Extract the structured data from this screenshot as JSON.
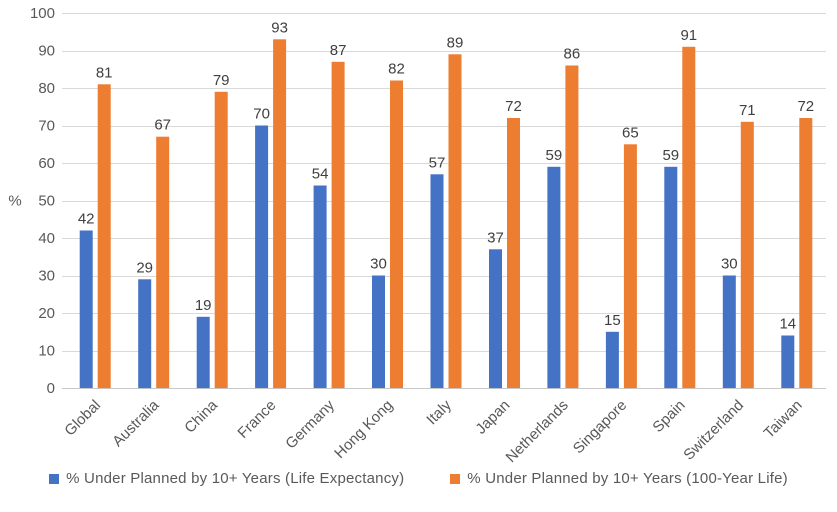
{
  "chart_data": {
    "type": "bar",
    "title": "",
    "xlabel": "",
    "ylabel": "%",
    "ylim": [
      0,
      100
    ],
    "ytick_step": 10,
    "yticks": [
      0,
      10,
      20,
      30,
      40,
      50,
      60,
      70,
      80,
      90,
      100
    ],
    "grid": true,
    "legend_position": "bottom",
    "categories": [
      "Global",
      "Australia",
      "China",
      "France",
      "Germany",
      "Hong Kong",
      "Italy",
      "Japan",
      "Netherlands",
      "Singapore",
      "Spain",
      "Switzerland",
      "Taiwan"
    ],
    "series": [
      {
        "name": "% Under Planned by 10+ Years (Life Expectancy)",
        "color": "#4472C4",
        "values": [
          42,
          29,
          19,
          70,
          54,
          30,
          57,
          37,
          59,
          15,
          59,
          30,
          14
        ]
      },
      {
        "name": "% Under Planned by 10+ Years (100-Year Life)",
        "color": "#ED7D31",
        "values": [
          81,
          67,
          79,
          93,
          87,
          82,
          89,
          72,
          86,
          65,
          91,
          71,
          72
        ]
      }
    ],
    "colors": {
      "gridline": "#D9D9D9",
      "axis_line": "#C9C9C9",
      "data_label": "#404040",
      "tick_label": "#595959",
      "category_label": "#595959",
      "legend_label": "#595959",
      "background": "#FFFFFF"
    }
  }
}
